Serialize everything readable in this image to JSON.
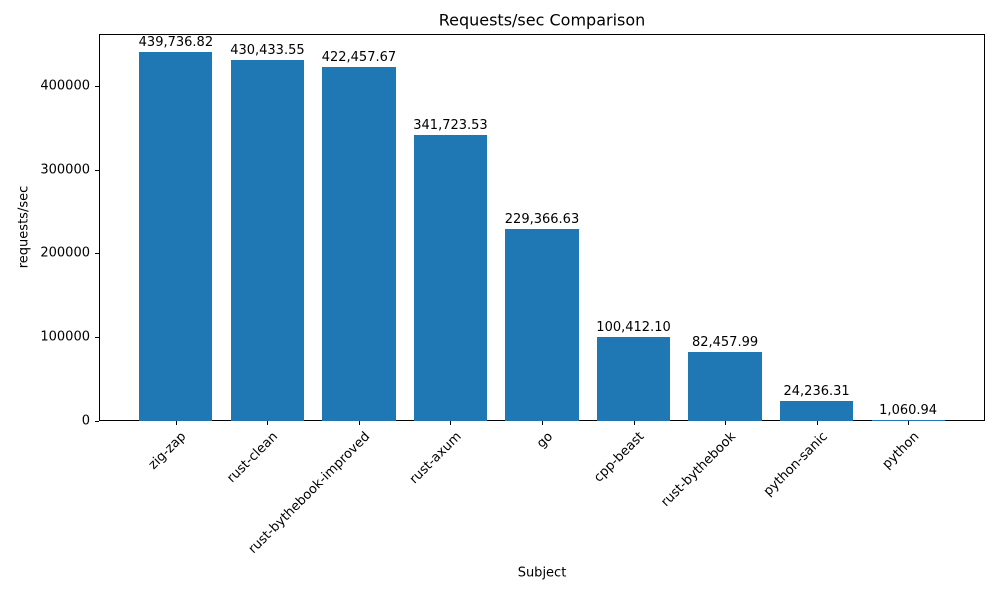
{
  "chart_data": {
    "type": "bar",
    "title": "Requests/sec Comparison",
    "xlabel": "Subject",
    "ylabel": "requests/sec",
    "categories": [
      "zig-zap",
      "rust-clean",
      "rust-bythebook-improved",
      "rust-axum",
      "go",
      "cpp-beast",
      "rust-bythebook",
      "python-sanic",
      "python"
    ],
    "values": [
      439736.82,
      430433.55,
      422457.67,
      341723.53,
      229366.63,
      100412.1,
      82457.99,
      24236.31,
      1060.94
    ],
    "value_labels": [
      "439,736.82",
      "430,433.55",
      "422,457.67",
      "341,723.53",
      "229,366.63",
      "100,412.10",
      "82,457.99",
      "24,236.31",
      "1,060.94"
    ],
    "yticks": [
      0,
      100000,
      200000,
      300000,
      400000
    ],
    "ytick_labels": [
      "0",
      "100000",
      "200000",
      "300000",
      "400000"
    ],
    "ylim": [
      0,
      461724
    ],
    "bar_color": "#1f77b4",
    "text_color": "#000000",
    "background_color": "#ffffff",
    "grid": false,
    "legend_position": "none",
    "bar_width_fraction": 0.8,
    "x_margin_units": 0.84
  }
}
